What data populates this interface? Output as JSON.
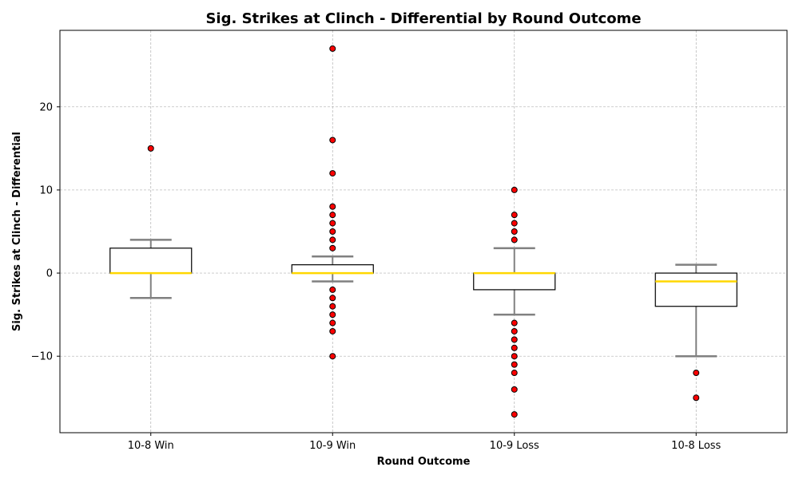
{
  "chart_data": {
    "type": "box",
    "title": "Sig. Strikes at Clinch - Differential by Round Outcome",
    "xlabel": "Round Outcome",
    "ylabel": "Sig. Strikes at Clinch - Differential",
    "ylim": [
      -19.2,
      29.2
    ],
    "yticks": [
      -10,
      0,
      10,
      20
    ],
    "ytick_labels": [
      "−10",
      "0",
      "10",
      "20"
    ],
    "grid": true,
    "colors": {
      "box_edge": "#000000",
      "median": "#FFD700",
      "whisker": "#808080",
      "outlier_fill": "#FF0000",
      "outlier_edge": "#000000",
      "grid": "#b0b0b0"
    },
    "categories": [
      "10-8 Win",
      "10-9 Win",
      "10-9 Loss",
      "10-8 Loss"
    ],
    "boxes": [
      {
        "category": "10-8 Win",
        "q1": 0,
        "median": 0,
        "q3": 3,
        "whisker_low": -3,
        "whisker_high": 4,
        "outliers": [
          15
        ]
      },
      {
        "category": "10-9 Win",
        "q1": 0,
        "median": 0,
        "q3": 1,
        "whisker_low": -1,
        "whisker_high": 2,
        "outliers": [
          27,
          16,
          12,
          8,
          7,
          6,
          5,
          4,
          3,
          -2,
          -3,
          -4,
          -5,
          -6,
          -7,
          -10
        ]
      },
      {
        "category": "10-9 Loss",
        "q1": -2,
        "median": 0,
        "q3": 0,
        "whisker_low": -5,
        "whisker_high": 3,
        "outliers": [
          10,
          7,
          6,
          5,
          4,
          -6,
          -7,
          -8,
          -9,
          -10,
          -11,
          -12,
          -14,
          -17
        ]
      },
      {
        "category": "10-8 Loss",
        "q1": -4,
        "median": -1,
        "q3": 0,
        "whisker_low": -10,
        "whisker_high": 1,
        "outliers": [
          -12,
          -15
        ]
      }
    ]
  }
}
